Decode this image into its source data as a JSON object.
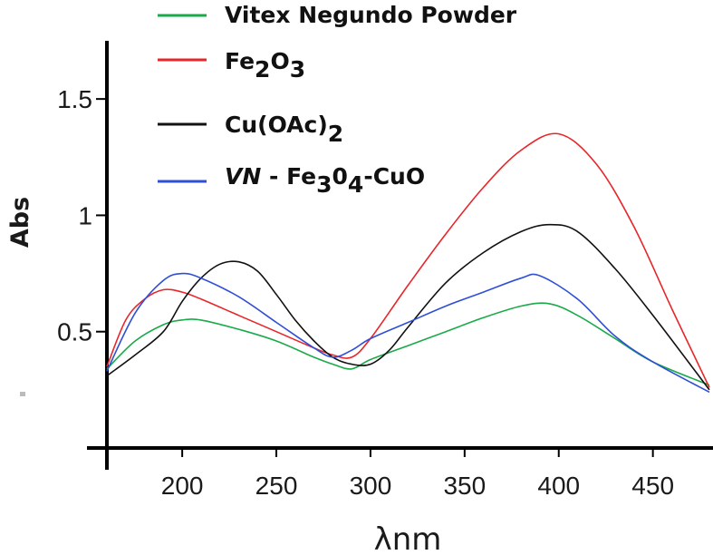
{
  "chart_data": {
    "type": "line",
    "title": "",
    "xlabel": "λnm",
    "ylabel": "Abs",
    "xlim": [
      160,
      480
    ],
    "ylim": [
      0,
      1.75
    ],
    "x_ticks": [
      {
        "value": 200,
        "label": "200"
      },
      {
        "value": 250,
        "label": "250"
      },
      {
        "value": 300,
        "label": "300"
      },
      {
        "value": 350,
        "label": "350"
      },
      {
        "value": 400,
        "label": "400"
      },
      {
        "value": 450,
        "label": "450"
      }
    ],
    "y_ticks": [
      {
        "value": 0.5,
        "label": "0.5"
      },
      {
        "value": 1.0,
        "label": "1"
      },
      {
        "value": 1.5,
        "label": "1.5"
      }
    ],
    "grid": false,
    "legend_position": "top-center",
    "series": [
      {
        "name": "Vitex Negundo Powder",
        "color": "#1aaa4a",
        "x": [
          160,
          175,
          190,
          200,
          210,
          230,
          250,
          270,
          280,
          290,
          300,
          320,
          340,
          360,
          380,
          395,
          410,
          430,
          450,
          480
        ],
        "y": [
          0.34,
          0.46,
          0.53,
          0.55,
          0.55,
          0.51,
          0.46,
          0.39,
          0.36,
          0.34,
          0.38,
          0.44,
          0.5,
          0.56,
          0.61,
          0.62,
          0.57,
          0.47,
          0.37,
          0.27
        ]
      },
      {
        "name": "Fe₂O₃",
        "color": "#e8262a",
        "x": [
          160,
          170,
          180,
          190,
          200,
          210,
          230,
          250,
          270,
          280,
          290,
          300,
          320,
          340,
          360,
          380,
          400,
          420,
          440,
          460,
          480
        ],
        "y": [
          0.35,
          0.55,
          0.64,
          0.68,
          0.67,
          0.64,
          0.57,
          0.5,
          0.43,
          0.4,
          0.39,
          0.47,
          0.7,
          0.92,
          1.12,
          1.28,
          1.35,
          1.22,
          0.95,
          0.6,
          0.26
        ]
      },
      {
        "name": "Cu(OAc)₂",
        "color": "#111111",
        "x": [
          160,
          175,
          190,
          200,
          210,
          220,
          230,
          240,
          250,
          260,
          270,
          280,
          290,
          300,
          310,
          320,
          340,
          360,
          380,
          395,
          410,
          430,
          450,
          480
        ],
        "y": [
          0.31,
          0.4,
          0.5,
          0.63,
          0.73,
          0.79,
          0.8,
          0.76,
          0.66,
          0.55,
          0.46,
          0.39,
          0.36,
          0.36,
          0.42,
          0.52,
          0.71,
          0.84,
          0.93,
          0.96,
          0.93,
          0.77,
          0.57,
          0.25
        ]
      },
      {
        "name": "VN - Fe₃O₄-CuO",
        "color": "#2f4fd6",
        "x": [
          160,
          175,
          190,
          200,
          210,
          230,
          250,
          270,
          280,
          290,
          300,
          320,
          340,
          360,
          380,
          390,
          410,
          430,
          450,
          480
        ],
        "y": [
          0.33,
          0.58,
          0.72,
          0.75,
          0.73,
          0.65,
          0.54,
          0.43,
          0.39,
          0.42,
          0.47,
          0.54,
          0.61,
          0.67,
          0.73,
          0.74,
          0.64,
          0.48,
          0.37,
          0.24
        ]
      }
    ]
  },
  "legend": {
    "items": [
      {
        "main": "Vitex Negundo Powder",
        "color": "#1aaa4a"
      },
      {
        "main": "Fe",
        "sub1": "2",
        "mid": "O",
        "sub2": "3",
        "color": "#e8262a"
      },
      {
        "main": "Cu(OAc)",
        "sub1": "2",
        "color": "#111111"
      },
      {
        "italic": "VN",
        "main": " - Fe",
        "sub1": "3",
        "mid": "0",
        "sub2": "4",
        "tail": "-CuO",
        "color": "#2f4fd6"
      }
    ]
  }
}
